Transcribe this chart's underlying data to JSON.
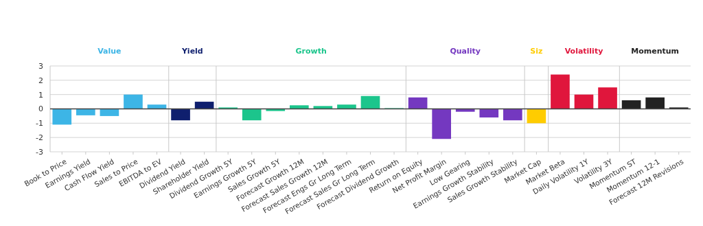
{
  "chart_data": {
    "type": "bar",
    "categories": [
      "Book to Price",
      "Earnings Yield",
      "Cash Flow Yield",
      "Sales to Price",
      "EBITDA to EV",
      "Dividend Yield",
      "Shareholder Yield",
      "Dividend Growth 5Y",
      "Earnings Growth 5Y",
      "Sales Growth 5Y",
      "Forecast Growth 12M",
      "Forecast Sales Growth 12M",
      "Forecast Engs Gr Long Term",
      "Forecast Sales Gr Long Term",
      "Forecast Dividend Growth",
      "Return on Equity",
      "Net Profit Margin",
      "Low Gearing",
      "Earnings Growth Stability",
      "Sales Growth Stability",
      "Market Cap",
      "Market Beta",
      "Daily Volatility 1Y",
      "Volatility 3Y",
      "Momentum ST",
      "Momentum 12-1",
      "Forecast 12M Revisions"
    ],
    "series": [
      {
        "name": "Value",
        "color": "#3db5e6",
        "values": [
          -1.1,
          -0.45,
          -0.5,
          1.0,
          0.3,
          null,
          null,
          null,
          null,
          null,
          null,
          null,
          null,
          null,
          null,
          null,
          null,
          null,
          null,
          null,
          null,
          null,
          null,
          null,
          null,
          null,
          null
        ]
      },
      {
        "name": "Yield",
        "color": "#0f1f6e",
        "values": [
          null,
          null,
          null,
          null,
          null,
          -0.8,
          0.5,
          null,
          null,
          null,
          null,
          null,
          null,
          null,
          null,
          null,
          null,
          null,
          null,
          null,
          null,
          null,
          null,
          null,
          null,
          null,
          null
        ]
      },
      {
        "name": "Growth",
        "color": "#1cc58c",
        "values": [
          null,
          null,
          null,
          null,
          null,
          null,
          null,
          0.1,
          -0.8,
          -0.15,
          0.25,
          0.2,
          0.3,
          0.9,
          0.05,
          null,
          null,
          null,
          null,
          null,
          null,
          null,
          null,
          null,
          null,
          null,
          null
        ]
      },
      {
        "name": "Quality",
        "color": "#7438c0",
        "values": [
          null,
          null,
          null,
          null,
          null,
          null,
          null,
          null,
          null,
          null,
          null,
          null,
          null,
          null,
          null,
          0.8,
          -2.1,
          -0.2,
          -0.6,
          -0.8,
          null,
          null,
          null,
          null,
          null,
          null,
          null
        ]
      },
      {
        "name": "Siz",
        "color": "#ffcc00",
        "values": [
          null,
          null,
          null,
          null,
          null,
          null,
          null,
          null,
          null,
          null,
          null,
          null,
          null,
          null,
          null,
          null,
          null,
          null,
          null,
          null,
          -1.0,
          null,
          null,
          null,
          null,
          null,
          null
        ]
      },
      {
        "name": "Volatility",
        "color": "#e0163c",
        "values": [
          null,
          null,
          null,
          null,
          null,
          null,
          null,
          null,
          null,
          null,
          null,
          null,
          null,
          null,
          null,
          null,
          null,
          null,
          null,
          null,
          null,
          2.4,
          1.0,
          1.5,
          null,
          null,
          null
        ]
      },
      {
        "name": "Momentum",
        "color": "#222222",
        "values": [
          null,
          null,
          null,
          null,
          null,
          null,
          null,
          null,
          null,
          null,
          null,
          null,
          null,
          null,
          null,
          null,
          null,
          null,
          null,
          null,
          null,
          null,
          null,
          null,
          0.6,
          0.8,
          0.1
        ]
      }
    ],
    "ylim": [
      -3,
      3
    ],
    "yticks": [
      -3,
      -2,
      -1,
      0,
      1,
      2,
      3
    ],
    "grid": "y"
  }
}
